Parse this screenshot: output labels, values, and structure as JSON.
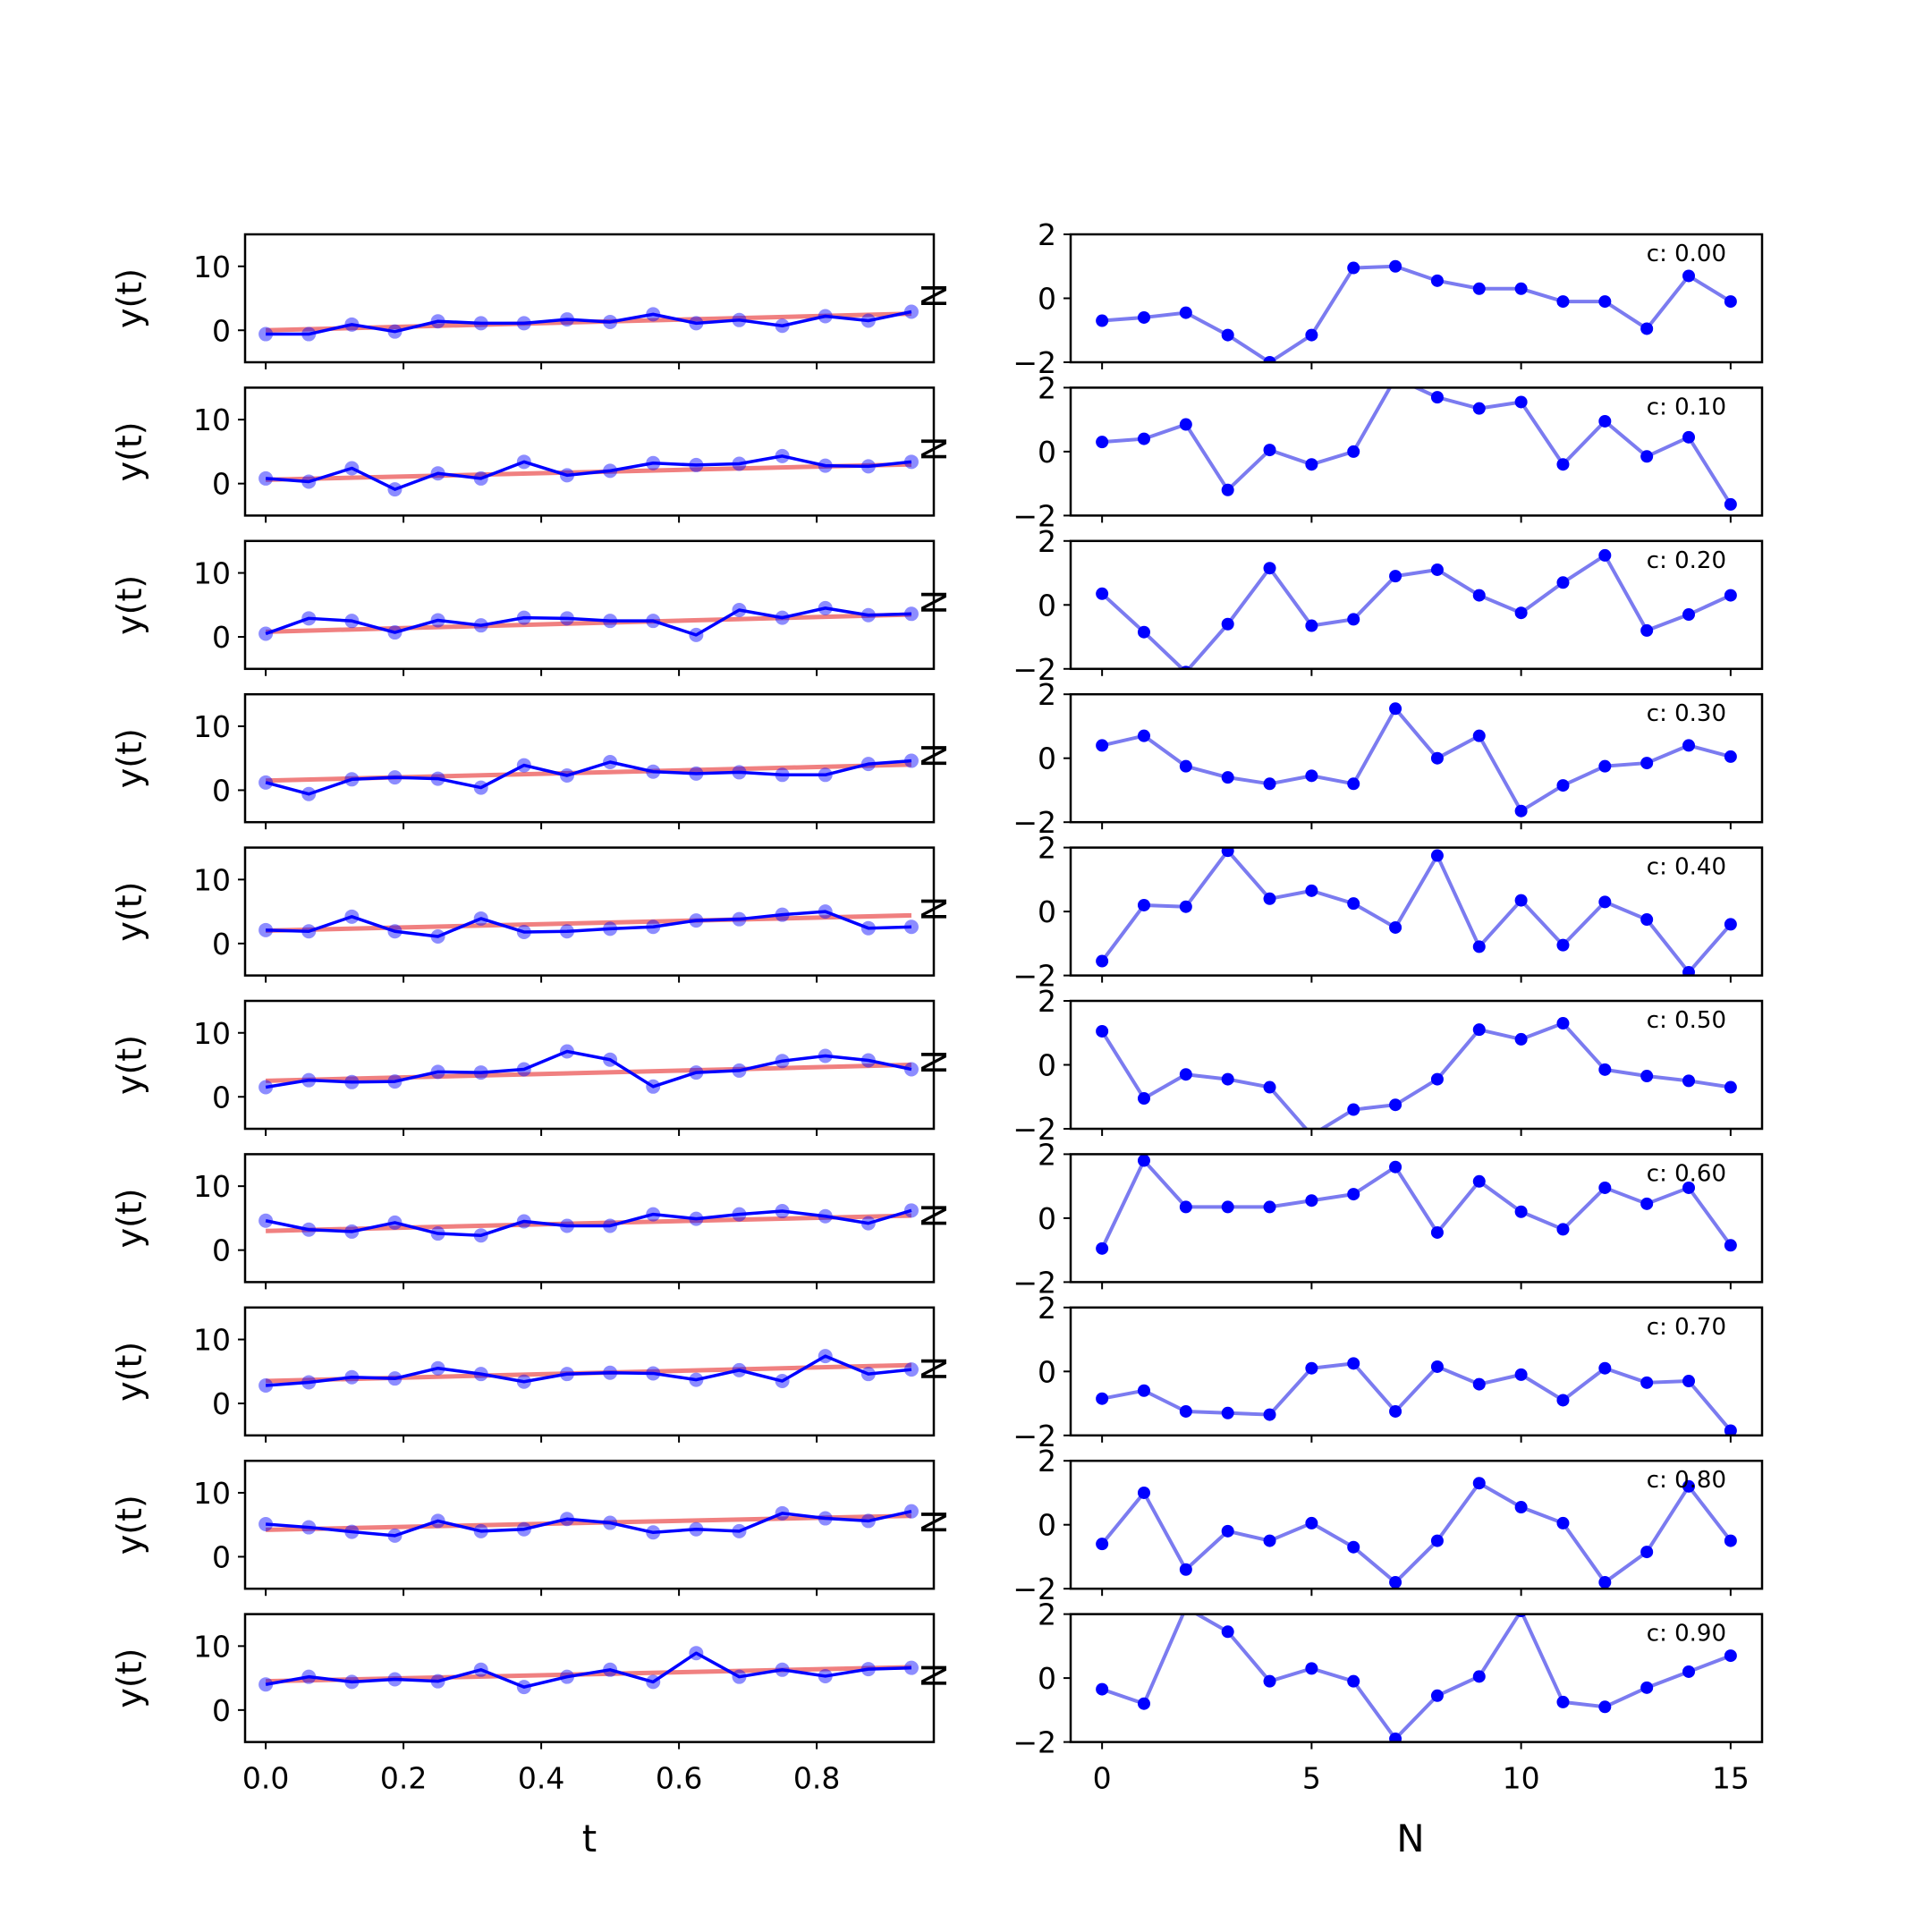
{
  "chart_data": [
    {
      "type": "line",
      "panel": "left-column",
      "xlabel": "t",
      "ylabel": "y(t)",
      "xlim": [
        -0.03,
        0.97
      ],
      "ylim": [
        -5,
        15
      ],
      "x_ticks": [
        0.0,
        0.2,
        0.4,
        0.6,
        0.8
      ],
      "x_tick_labels": [
        "0.0",
        "0.2",
        "0.4",
        "0.6",
        "0.8"
      ],
      "y_ticks": [
        0,
        10
      ],
      "y_tick_labels": [
        "0",
        "10"
      ],
      "x": [
        0.0,
        0.0625,
        0.125,
        0.1875,
        0.25,
        0.3125,
        0.375,
        0.4375,
        0.5,
        0.5625,
        0.625,
        0.6875,
        0.75,
        0.8125,
        0.875,
        0.9375
      ],
      "observed_color": "#0000ff",
      "trend_color": "#f08080",
      "rows": [
        {
          "trend": [
            0.0,
            2.6
          ],
          "y": [
            -0.6,
            -0.6,
            0.9,
            -0.2,
            1.4,
            1.1,
            1.1,
            1.7,
            1.3,
            2.5,
            1.1,
            1.6,
            0.7,
            2.2,
            1.5,
            2.9
          ]
        },
        {
          "trend": [
            0.6,
            3.0
          ],
          "y": [
            0.8,
            0.3,
            2.4,
            -0.9,
            1.6,
            0.8,
            3.4,
            1.3,
            2.0,
            3.2,
            2.9,
            3.1,
            4.3,
            2.8,
            2.7,
            3.4
          ]
        },
        {
          "trend": [
            0.8,
            3.5
          ],
          "y": [
            0.5,
            2.9,
            2.5,
            0.7,
            2.6,
            1.8,
            3.0,
            2.9,
            2.5,
            2.5,
            0.3,
            4.2,
            3.0,
            4.5,
            3.4,
            3.6
          ]
        },
        {
          "trend": [
            1.5,
            4.0
          ],
          "y": [
            1.2,
            -0.6,
            1.7,
            2.0,
            1.8,
            0.4,
            3.9,
            2.3,
            4.4,
            2.9,
            2.6,
            2.8,
            2.4,
            2.4,
            4.1,
            4.6
          ]
        },
        {
          "trend": [
            2.0,
            4.4
          ],
          "y": [
            2.1,
            1.9,
            4.2,
            1.9,
            1.1,
            3.9,
            1.8,
            1.9,
            2.3,
            2.6,
            3.6,
            3.8,
            4.5,
            5.0,
            2.4,
            2.6
          ]
        },
        {
          "trend": [
            2.5,
            5.0
          ],
          "y": [
            1.5,
            2.6,
            2.3,
            2.4,
            3.9,
            3.8,
            4.3,
            7.1,
            5.8,
            1.6,
            3.8,
            4.1,
            5.6,
            6.4,
            5.7,
            4.3
          ]
        },
        {
          "trend": [
            3.0,
            5.4
          ],
          "y": [
            4.6,
            3.2,
            2.9,
            4.3,
            2.6,
            2.3,
            4.5,
            3.8,
            3.8,
            5.6,
            4.9,
            5.6,
            6.1,
            5.3,
            4.2,
            6.2
          ]
        },
        {
          "trend": [
            3.5,
            6.0
          ],
          "y": [
            2.8,
            3.3,
            4.1,
            3.9,
            5.5,
            4.6,
            3.4,
            4.6,
            4.8,
            4.7,
            3.7,
            5.2,
            3.5,
            7.4,
            4.6,
            5.3
          ]
        },
        {
          "trend": [
            4.2,
            6.4
          ],
          "y": [
            5.1,
            4.6,
            3.9,
            3.3,
            5.6,
            4.0,
            4.3,
            5.9,
            5.3,
            3.8,
            4.3,
            4.0,
            6.8,
            6.0,
            5.6,
            7.1
          ]
        },
        {
          "trend": [
            4.5,
            6.7
          ],
          "y": [
            4.0,
            5.2,
            4.4,
            4.8,
            4.5,
            6.3,
            3.6,
            5.2,
            6.3,
            4.4,
            8.9,
            5.2,
            6.3,
            5.3,
            6.4,
            6.6
          ]
        }
      ]
    },
    {
      "type": "line",
      "panel": "right-column",
      "xlabel": "N",
      "ylabel_fragment": "N",
      "xlim": [
        -0.75,
        15.75
      ],
      "ylim": [
        -2,
        2
      ],
      "x_ticks": [
        0,
        5,
        10,
        15
      ],
      "x_tick_labels": [
        "0",
        "5",
        "10",
        "15"
      ],
      "y_ticks": [
        -2,
        0,
        2
      ],
      "y_tick_labels": [
        "−2",
        "0",
        "2"
      ],
      "x": [
        0,
        1,
        2,
        3,
        4,
        5,
        6,
        7,
        8,
        9,
        10,
        11,
        12,
        13,
        14,
        15
      ],
      "line_color": "#7b7bf0",
      "marker_color": "#0000ff",
      "rows": [
        {
          "label": "c: 0.00",
          "y": [
            -0.7,
            -0.6,
            -0.45,
            -1.15,
            -2.0,
            -1.15,
            0.95,
            1.0,
            0.55,
            0.3,
            0.3,
            -0.1,
            -0.1,
            -0.95,
            0.7,
            -0.1
          ]
        },
        {
          "label": "c: 0.10",
          "y": [
            0.3,
            0.4,
            0.85,
            -1.2,
            0.05,
            -0.4,
            0.0,
            2.3,
            1.7,
            1.35,
            1.55,
            -0.4,
            0.95,
            -0.15,
            0.45,
            -1.65
          ]
        },
        {
          "label": "c: 0.20",
          "y": [
            0.35,
            -0.85,
            -2.1,
            -0.6,
            1.15,
            -0.65,
            -0.45,
            0.9,
            1.1,
            0.3,
            -0.25,
            0.7,
            1.55,
            -0.8,
            -0.3,
            0.3
          ]
        },
        {
          "label": "c: 0.30",
          "y": [
            0.4,
            0.7,
            -0.25,
            -0.6,
            -0.8,
            -0.55,
            -0.8,
            1.55,
            0.0,
            0.7,
            -1.65,
            -0.85,
            -0.25,
            -0.15,
            0.4,
            0.05
          ]
        },
        {
          "label": "c: 0.40",
          "y": [
            -1.55,
            0.2,
            0.15,
            1.9,
            0.4,
            0.65,
            0.25,
            -0.5,
            1.75,
            -1.1,
            0.35,
            -1.05,
            0.3,
            -0.25,
            -1.9,
            -0.4
          ]
        },
        {
          "label": "c: 0.50",
          "y": [
            1.05,
            -1.05,
            -0.3,
            -0.45,
            -0.7,
            -2.2,
            -1.4,
            -1.25,
            -0.45,
            1.1,
            0.8,
            1.3,
            -0.15,
            -0.35,
            -0.5,
            -0.7
          ]
        },
        {
          "label": "c: 0.60",
          "y": [
            -0.95,
            1.8,
            0.35,
            0.35,
            0.35,
            0.55,
            0.75,
            1.6,
            -0.45,
            1.15,
            0.2,
            -0.35,
            0.95,
            0.45,
            0.95,
            -0.85
          ]
        },
        {
          "label": "c: 0.70",
          "y": [
            -0.85,
            -0.6,
            -1.25,
            -1.3,
            -1.35,
            0.1,
            0.25,
            -1.25,
            0.15,
            -0.4,
            -0.1,
            -0.9,
            0.1,
            -0.35,
            -0.3,
            -1.85
          ]
        },
        {
          "label": "c: 0.80",
          "y": [
            -0.6,
            1.0,
            -1.4,
            -0.2,
            -0.5,
            0.05,
            -0.7,
            -1.8,
            -0.5,
            1.3,
            0.55,
            0.05,
            -1.8,
            -0.85,
            1.2,
            -0.5
          ]
        },
        {
          "label": "c: 0.90",
          "y": [
            -0.35,
            -0.8,
            2.2,
            1.45,
            -0.1,
            0.3,
            -0.1,
            -1.9,
            -0.55,
            0.05,
            2.1,
            -0.75,
            -0.9,
            -0.3,
            0.2,
            0.7
          ]
        }
      ]
    }
  ]
}
